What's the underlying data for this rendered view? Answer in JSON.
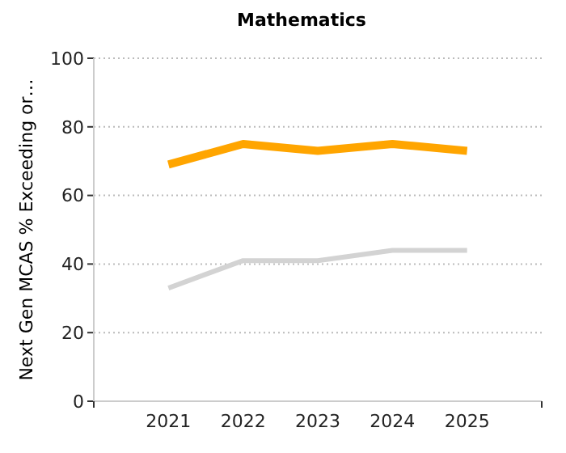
{
  "chart_data": {
    "type": "line",
    "title": "Mathematics",
    "ylabel": "Next Gen MCAS % Exceeding or…",
    "categories": [
      "2021",
      "2022",
      "2023",
      "2024",
      "2025"
    ],
    "series": [
      {
        "color": "#ffa500",
        "values": [
          69,
          75,
          73,
          75,
          73
        ]
      },
      {
        "color": "#d3d3d3",
        "values": [
          33,
          41,
          41,
          44,
          44
        ]
      }
    ],
    "ylim": [
      0,
      100
    ],
    "yticks": [
      0,
      20,
      40,
      60,
      80,
      100
    ],
    "grid": "y",
    "marker": "none",
    "line_style": "solid"
  }
}
